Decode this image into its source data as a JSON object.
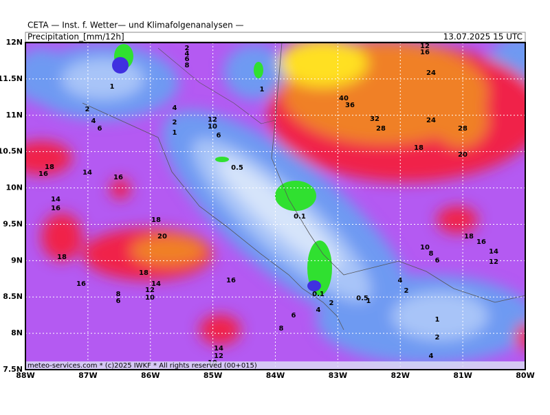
{
  "header": {
    "title": "CETA — Inst. f. Wetter— und Klimafolgenanalysen —",
    "variable": "Precipitation_[mm/12h]",
    "valid_time": "13.07.2025 15 UTC"
  },
  "axes": {
    "lat_labels": [
      "12N",
      "11.5N",
      "11N",
      "10.5N",
      "10N",
      "9.5N",
      "9N",
      "8.5N",
      "8N",
      "7.5N"
    ],
    "lon_labels": [
      "88W",
      "87W",
      "86W",
      "85W",
      "84W",
      "83W",
      "82W",
      "81W",
      "80W"
    ]
  },
  "contour_labels": [
    "2",
    "4",
    "6",
    "8",
    "1",
    "1",
    "12",
    "16",
    "24",
    "40",
    "36",
    "2",
    "4",
    "4",
    "6",
    "12",
    "10",
    "2",
    "1",
    "6",
    "32",
    "28",
    "24",
    "28",
    "18",
    "20",
    "0.5",
    "18",
    "16",
    "14",
    "16",
    "14",
    "16",
    "0.1",
    "18",
    "20",
    "18",
    "16",
    "10",
    "8",
    "6",
    "14",
    "12",
    "18",
    "18",
    "14",
    "12",
    "10",
    "16",
    "4",
    "16",
    "8",
    "6",
    "2",
    "0.1",
    "0.5",
    "1",
    "2",
    "4",
    "6",
    "1",
    "8",
    "2",
    "14",
    "12",
    "4",
    "10"
  ],
  "footer": "meteo-services.com * (c)2025 IWKF * All rights reserved (00+015)"
}
